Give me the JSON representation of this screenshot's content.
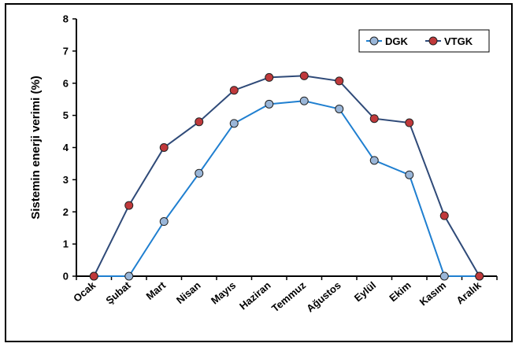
{
  "chart_data": {
    "type": "line",
    "title": "",
    "xlabel": "",
    "ylabel": "Sistemin enerji verimi (%)",
    "ylim": [
      0,
      8
    ],
    "yticks": [
      0,
      1,
      2,
      3,
      4,
      5,
      6,
      7,
      8
    ],
    "grid": false,
    "legend_position": "top-right",
    "categories": [
      "Ocak",
      "Şubat",
      "Mart",
      "Nisan",
      "Mayıs",
      "Haziran",
      "Temmuz",
      "Ağustos",
      "Eylül",
      "Ekim",
      "Kasım",
      "Aralık"
    ],
    "series": [
      {
        "name": "DGK",
        "line_color": "#1f7fd0",
        "marker_color": "#9ab6d8",
        "values": [
          0,
          0,
          1.7,
          3.2,
          4.75,
          5.35,
          5.45,
          5.2,
          3.6,
          3.15,
          0,
          0
        ]
      },
      {
        "name": "VTGK",
        "line_color": "#2f4a78",
        "marker_color": "#c0393b",
        "values": [
          0,
          2.2,
          4.0,
          4.8,
          5.78,
          6.18,
          6.23,
          6.07,
          4.9,
          4.77,
          1.88,
          0
        ]
      }
    ]
  }
}
